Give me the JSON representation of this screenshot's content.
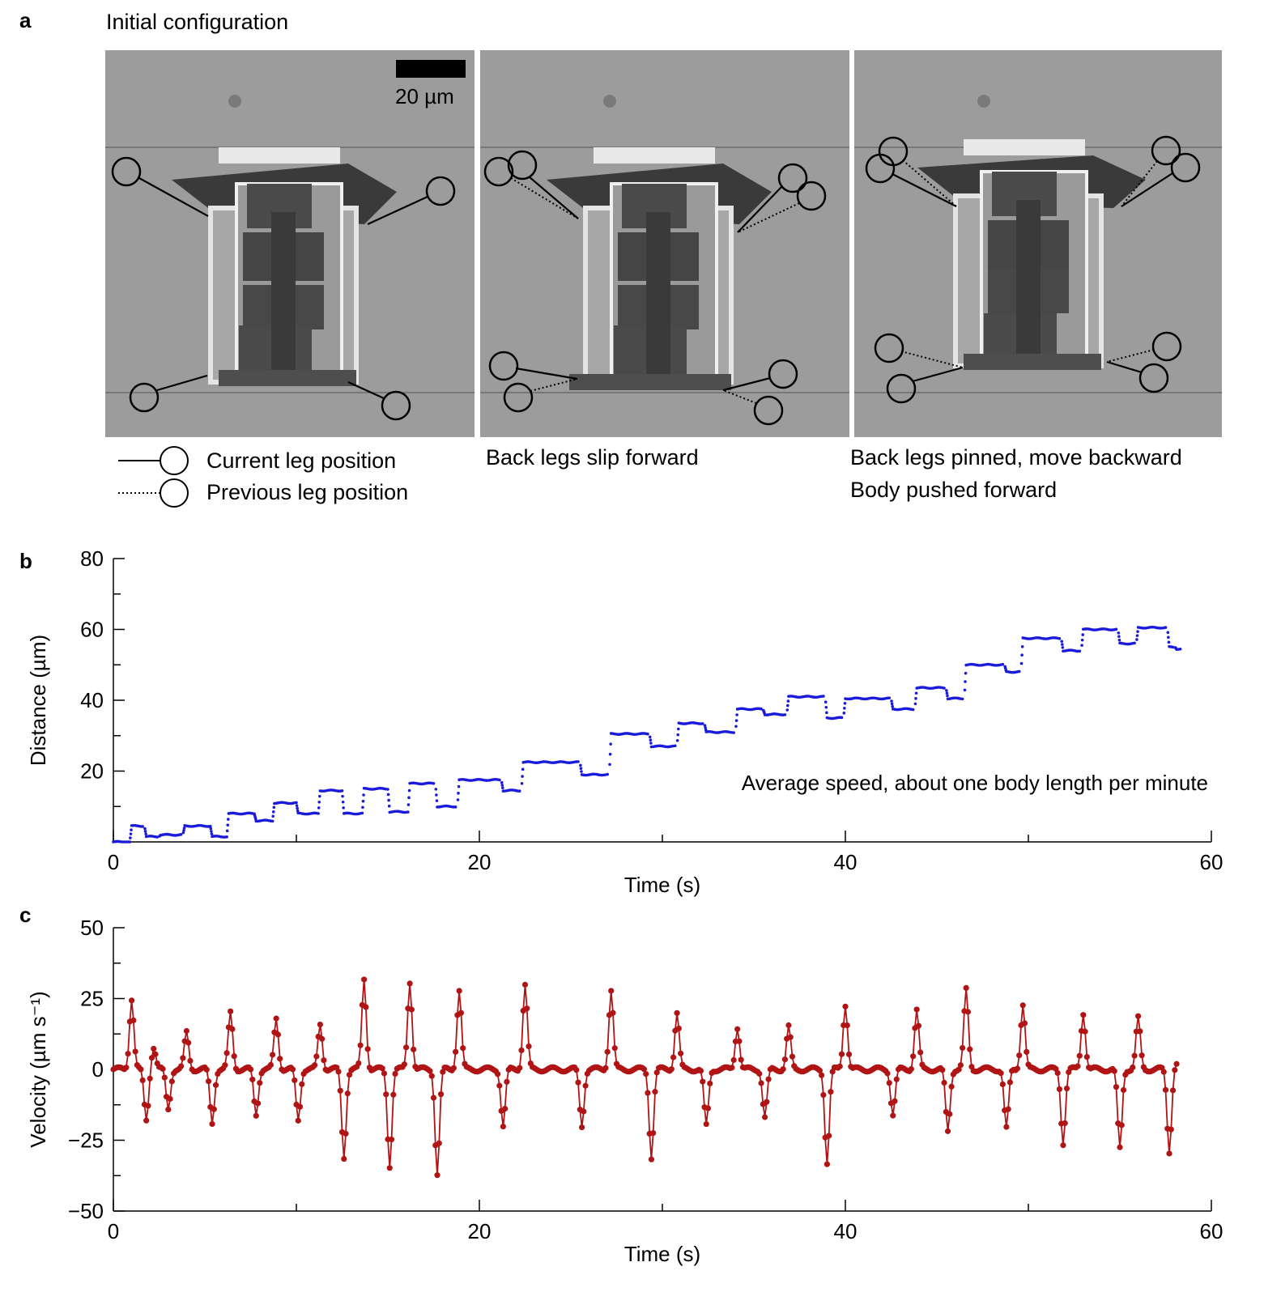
{
  "panel_a": {
    "letter": "a",
    "title": "Initial configuration",
    "scale_bar_label": "20 µm",
    "legend": {
      "current": "Current leg position",
      "previous": "Previous leg position"
    },
    "captions": {
      "frame2": "Back legs slip forward",
      "frame3_line1": "Back legs pinned, move backward",
      "frame3_line2": "Body pushed forward"
    }
  },
  "panel_b": {
    "letter": "b"
  },
  "panel_c": {
    "letter": "c"
  },
  "chart_data": [
    {
      "type": "scatter",
      "panel": "b",
      "xlabel": "Time (s)",
      "ylabel": "Distance (µm)",
      "xlim": [
        0,
        60
      ],
      "ylim": [
        0,
        80
      ],
      "xticks": [
        0,
        20,
        40,
        60
      ],
      "yticks": [
        20,
        40,
        60,
        80
      ],
      "annotation": "Average speed, about one body length per minute",
      "color": "#1a1adc",
      "steps": [
        [
          0.0,
          0.0
        ],
        [
          1.0,
          4.5
        ],
        [
          1.8,
          1.5
        ],
        [
          2.6,
          2.0
        ],
        [
          3.9,
          4.5
        ],
        [
          5.4,
          1.5
        ],
        [
          6.3,
          8.0
        ],
        [
          7.8,
          6.0
        ],
        [
          8.8,
          11.0
        ],
        [
          10.1,
          8.0
        ],
        [
          11.3,
          14.5
        ],
        [
          12.6,
          8.0
        ],
        [
          13.7,
          15.0
        ],
        [
          15.1,
          8.5
        ],
        [
          16.2,
          16.5
        ],
        [
          17.7,
          10.0
        ],
        [
          18.9,
          17.5
        ],
        [
          21.3,
          14.5
        ],
        [
          22.4,
          22.5
        ],
        [
          25.6,
          19.0
        ],
        [
          27.2,
          30.5
        ],
        [
          29.4,
          27.0
        ],
        [
          30.9,
          33.5
        ],
        [
          32.4,
          31.0
        ],
        [
          34.1,
          37.5
        ],
        [
          35.6,
          36.0
        ],
        [
          36.9,
          41.0
        ],
        [
          39.0,
          35.0
        ],
        [
          40.0,
          40.5
        ],
        [
          42.6,
          37.5
        ],
        [
          43.9,
          43.5
        ],
        [
          45.6,
          40.5
        ],
        [
          46.6,
          50.0
        ],
        [
          48.8,
          48.0
        ],
        [
          49.7,
          57.5
        ],
        [
          51.9,
          54.0
        ],
        [
          53.0,
          60.0
        ],
        [
          55.0,
          56.0
        ],
        [
          56.0,
          60.5
        ],
        [
          57.7,
          55.0
        ],
        [
          58.1,
          54.5
        ]
      ]
    },
    {
      "type": "line",
      "panel": "c",
      "xlabel": "Time (s)",
      "ylabel": "Velocity (µm s⁻¹)",
      "xlim": [
        0,
        60
      ],
      "ylim": [
        -50,
        50
      ],
      "xticks": [
        0,
        20,
        40,
        60
      ],
      "yticks": [
        -50,
        -25,
        0,
        25,
        50
      ],
      "color": "#b01414",
      "spikes": [
        [
          1.0,
          25
        ],
        [
          1.8,
          -18
        ],
        [
          2.2,
          8
        ],
        [
          3.0,
          -14
        ],
        [
          4.0,
          13
        ],
        [
          5.4,
          -19
        ],
        [
          6.4,
          20
        ],
        [
          7.8,
          -16
        ],
        [
          8.9,
          18
        ],
        [
          10.1,
          -18
        ],
        [
          11.3,
          16
        ],
        [
          12.6,
          -31
        ],
        [
          13.7,
          32
        ],
        [
          15.1,
          -34
        ],
        [
          16.2,
          31
        ],
        [
          17.7,
          -37
        ],
        [
          18.9,
          28
        ],
        [
          21.3,
          -20
        ],
        [
          22.5,
          30
        ],
        [
          25.6,
          -20
        ],
        [
          27.2,
          28
        ],
        [
          29.4,
          -31
        ],
        [
          30.8,
          20
        ],
        [
          32.4,
          -20
        ],
        [
          34.1,
          15
        ],
        [
          35.6,
          -17
        ],
        [
          36.9,
          15
        ],
        [
          39.0,
          -33
        ],
        [
          40.0,
          23
        ],
        [
          42.6,
          -16
        ],
        [
          43.9,
          21
        ],
        [
          45.6,
          -22
        ],
        [
          46.6,
          28
        ],
        [
          48.8,
          -21
        ],
        [
          49.7,
          23
        ],
        [
          51.9,
          -26
        ],
        [
          53.0,
          20
        ],
        [
          55.0,
          -28
        ],
        [
          56.0,
          18
        ],
        [
          57.7,
          -29
        ],
        [
          58.1,
          2
        ]
      ]
    }
  ]
}
